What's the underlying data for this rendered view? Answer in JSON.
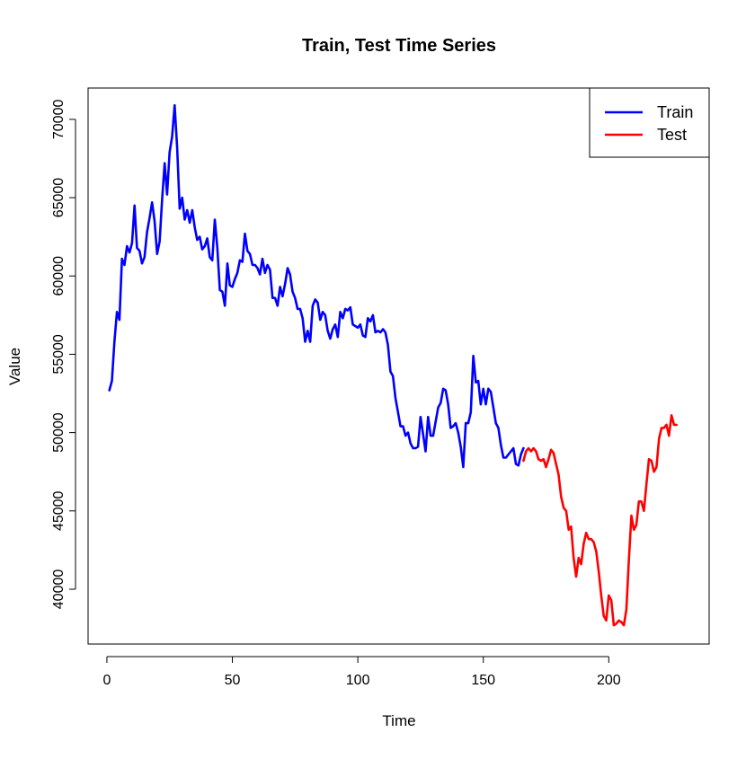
{
  "chart_data": {
    "type": "line",
    "title": "Train, Test Time Series",
    "xlabel": "Time",
    "ylabel": "Value",
    "xlim": [
      -7.5,
      240
    ],
    "ylim": [
      36500,
      72000
    ],
    "x_ticks": [
      0,
      50,
      100,
      150,
      200
    ],
    "y_ticks": [
      40000,
      45000,
      50000,
      55000,
      60000,
      65000,
      70000
    ],
    "x_tick_labels": [
      "0",
      "50",
      "100",
      "150",
      "200"
    ],
    "y_tick_labels": [
      "40000",
      "45000",
      "50000",
      "55000",
      "60000",
      "65000",
      "70000"
    ],
    "grid": false,
    "legend_position": "top-right",
    "legend": [
      {
        "label": "Train",
        "color": "#0000ff"
      },
      {
        "label": "Test",
        "color": "#ff0000"
      }
    ],
    "series": [
      {
        "name": "Train",
        "color": "#0000ff",
        "x": [
          1,
          2,
          3,
          4,
          5,
          6,
          7,
          8,
          9,
          10,
          11,
          12,
          13,
          14,
          15,
          16,
          17,
          18,
          19,
          20,
          21,
          22,
          23,
          24,
          25,
          26,
          27,
          28,
          29,
          30,
          31,
          32,
          33,
          34,
          35,
          36,
          37,
          38,
          39,
          40,
          41,
          42,
          43,
          44,
          45,
          46,
          47,
          48,
          49,
          50,
          51,
          52,
          53,
          54,
          55,
          56,
          57,
          58,
          59,
          60,
          61,
          62,
          63,
          64,
          65,
          66,
          67,
          68,
          69,
          70,
          71,
          72,
          73,
          74,
          75,
          76,
          77,
          78,
          79,
          80,
          81,
          82,
          83,
          84,
          85,
          86,
          87,
          88,
          89,
          90,
          91,
          92,
          93,
          94,
          95,
          96,
          97,
          98,
          99,
          100,
          101,
          102,
          103,
          104,
          105,
          106,
          107,
          108,
          109,
          110,
          111,
          112,
          113,
          114,
          115,
          116,
          117,
          118,
          119,
          120,
          121,
          122,
          123,
          124,
          125,
          126,
          127,
          128,
          129,
          130,
          131,
          132,
          133,
          134,
          135,
          136,
          137,
          138,
          139,
          140,
          141,
          142,
          143,
          144,
          145,
          146,
          147,
          148,
          149,
          150,
          151,
          152,
          153,
          154,
          155,
          156,
          157,
          158,
          159,
          160,
          161,
          162,
          163,
          164,
          165,
          166
        ],
        "y": [
          52700,
          53300,
          55800,
          57700,
          57200,
          61100,
          60700,
          61900,
          61500,
          62100,
          64500,
          61800,
          61600,
          60800,
          61200,
          62800,
          63700,
          64700,
          63500,
          61400,
          62200,
          64900,
          67200,
          65200,
          67900,
          68900,
          70900,
          68200,
          64300,
          65000,
          63600,
          64200,
          63400,
          64200,
          63100,
          62300,
          62500,
          61700,
          61900,
          62400,
          61200,
          61000,
          63600,
          61800,
          59100,
          59000,
          58100,
          60800,
          59400,
          59300,
          59800,
          60200,
          61000,
          60900,
          62700,
          61600,
          61400,
          60700,
          60700,
          60500,
          60100,
          61100,
          60200,
          60700,
          60400,
          58600,
          58600,
          58100,
          59300,
          58700,
          59500,
          60500,
          60100,
          59000,
          58600,
          57900,
          57900,
          57300,
          55800,
          56500,
          55800,
          58100,
          58500,
          58300,
          57200,
          57700,
          57500,
          56500,
          56000,
          56600,
          56900,
          56100,
          57700,
          57300,
          57900,
          57800,
          58000,
          56900,
          56800,
          56700,
          56900,
          56200,
          56100,
          57300,
          57100,
          57500,
          56400,
          56500,
          56400,
          56600,
          56400,
          55600,
          53900,
          53600,
          52200,
          51300,
          50400,
          50400,
          49800,
          50000,
          49300,
          49000,
          49000,
          49100,
          51000,
          49900,
          48800,
          51000,
          49800,
          49800,
          50700,
          51600,
          51900,
          52800,
          52700,
          51800,
          50300,
          50400,
          50600,
          50000,
          49100,
          47800,
          50600,
          50600,
          51300,
          54900,
          53200,
          53300,
          51800,
          52800,
          51800,
          52800,
          52600,
          51600,
          50600,
          50300,
          49200,
          48400,
          48400,
          48600,
          48800,
          49000,
          48000,
          47900,
          48600,
          49000
        ]
      },
      {
        "name": "Test",
        "color": "#ff0000",
        "x": [
          166,
          167,
          168,
          169,
          170,
          171,
          172,
          173,
          174,
          175,
          176,
          177,
          178,
          179,
          180,
          181,
          182,
          183,
          184,
          185,
          186,
          187,
          188,
          189,
          190,
          191,
          192,
          193,
          194,
          195,
          196,
          197,
          198,
          199,
          200,
          201,
          202,
          203,
          204,
          205,
          206,
          207,
          208,
          209,
          210,
          211,
          212,
          213,
          214,
          215,
          216,
          217,
          218,
          219,
          220,
          221,
          222,
          223,
          224,
          225,
          226,
          227
        ],
        "y": [
          48200,
          48800,
          49000,
          48800,
          49000,
          48800,
          48300,
          48200,
          48300,
          47800,
          48300,
          48900,
          48700,
          48000,
          47300,
          45900,
          45200,
          45000,
          43800,
          44000,
          42000,
          40800,
          42000,
          41600,
          42900,
          43600,
          43200,
          43200,
          43000,
          42400,
          41100,
          39600,
          38300,
          38000,
          39600,
          39300,
          37700,
          37800,
          38000,
          37900,
          37700,
          38700,
          41900,
          44700,
          43800,
          44100,
          45600,
          45600,
          45000,
          46700,
          48300,
          48200,
          47500,
          47800,
          49600,
          50300,
          50300,
          50500,
          49800,
          51100,
          50500,
          50500
        ]
      }
    ]
  }
}
